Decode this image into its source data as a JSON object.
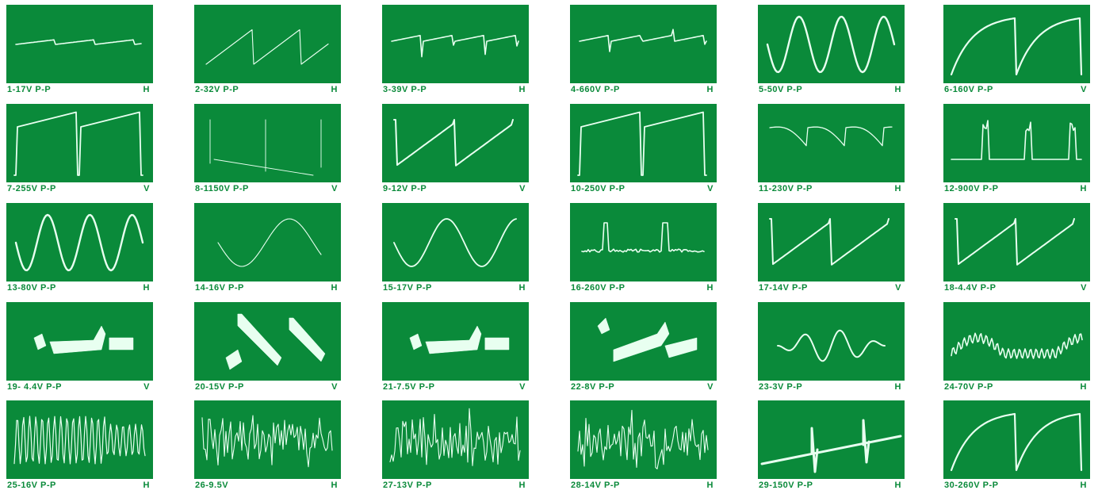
{
  "panel_color": "#0a8a3a",
  "trace_color": "#e8fff0",
  "panels": [
    {
      "label": "1-17V  P-P",
      "sweep": "H",
      "wave": "pulse-small"
    },
    {
      "label": "2-32V  P-P",
      "sweep": "H",
      "wave": "saw-faint"
    },
    {
      "label": "3-39V  P-P",
      "sweep": "H",
      "wave": "spiky"
    },
    {
      "label": "4-660V  P-P",
      "sweep": "H",
      "wave": "spiky"
    },
    {
      "label": "5-50V  P-P",
      "sweep": "H",
      "wave": "sine-big"
    },
    {
      "label": "6-160V  P-P",
      "sweep": "V",
      "wave": "charge"
    },
    {
      "label": "7-255V  P-P",
      "sweep": "V",
      "wave": "ramp-up"
    },
    {
      "label": "8-1150V  P-P",
      "sweep": "V",
      "wave": "faint-lines"
    },
    {
      "label": "9-12V  P-P",
      "sweep": "V",
      "wave": "saw-rise"
    },
    {
      "label": "10-250V  P-P",
      "sweep": "V",
      "wave": "ramp-up"
    },
    {
      "label": "11-230V  P-P",
      "sweep": "H",
      "wave": "saw-fall"
    },
    {
      "label": "12-900V  P-P",
      "sweep": "H",
      "wave": "pulse-tall"
    },
    {
      "label": "13-80V  P-P",
      "sweep": "H",
      "wave": "sine-big"
    },
    {
      "label": "14-16V  P-P",
      "sweep": "H",
      "wave": "sine-faint"
    },
    {
      "label": "15-17V  P-P",
      "sweep": "H",
      "wave": "sine-mid"
    },
    {
      "label": "16-260V  P-P",
      "sweep": "H",
      "wave": "pulse-noise"
    },
    {
      "label": "17-14V  P-P",
      "sweep": "V",
      "wave": "saw-rise"
    },
    {
      "label": "18-4.4V  P-P",
      "sweep": "V",
      "wave": "saw-rise"
    },
    {
      "label": "19- 4.4V  P-P",
      "sweep": "V",
      "wave": "thick-ramp"
    },
    {
      "label": "20-15V  P-P",
      "sweep": "V",
      "wave": "thick-diag"
    },
    {
      "label": "21-7.5V  P-P",
      "sweep": "V",
      "wave": "thick-ramp"
    },
    {
      "label": "22-8V  P-P",
      "sweep": "V",
      "wave": "thick-curve"
    },
    {
      "label": "23-3V  P-P",
      "sweep": "H",
      "wave": "damped"
    },
    {
      "label": "24-70V  P-P",
      "sweep": "H",
      "wave": "ripple"
    },
    {
      "label": "25-16V  P-P",
      "sweep": "H",
      "wave": "burst"
    },
    {
      "label": "26-9.5V",
      "sweep": "H",
      "wave": "noise"
    },
    {
      "label": "27-13V  P-P",
      "sweep": "H",
      "wave": "noise"
    },
    {
      "label": "28-14V  P-P",
      "sweep": "H",
      "wave": "noise"
    },
    {
      "label": "29-150V  P-P",
      "sweep": "H",
      "wave": "spike-line"
    },
    {
      "label": "30-260V  P-P",
      "sweep": "H",
      "wave": "charge"
    }
  ]
}
